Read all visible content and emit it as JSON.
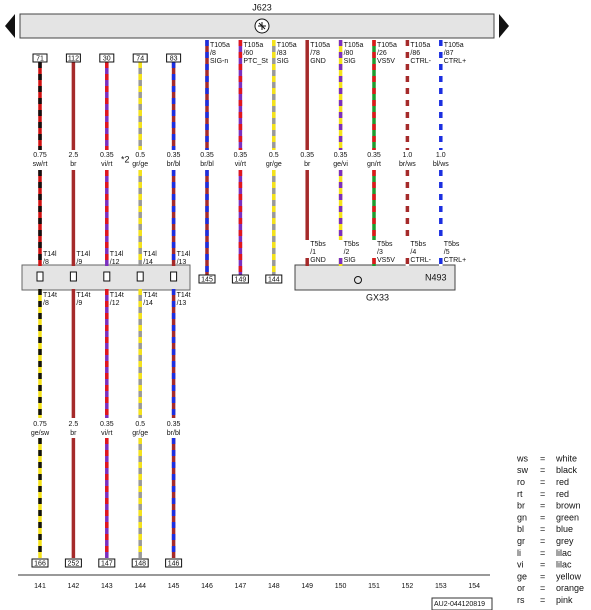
{
  "header": {
    "component": "J623"
  },
  "left_wires": [
    {
      "pin": "71",
      "size": "0.75",
      "color_code": "sw/rt",
      "colors": [
        "#d01010",
        "#111111"
      ],
      "connector": "T14l",
      "connector_pin": "/8",
      "lower_connector": "T14t",
      "lower_pin": "/8",
      "lower_size": "0.75",
      "lower_color_code": "ge/sw",
      "lower_colors": [
        "#f5e31a",
        "#111111"
      ],
      "end": "166"
    },
    {
      "pin": "112",
      "size": "2.5",
      "color_code": "br",
      "colors": [
        "#a52a2a"
      ],
      "connector": "T14l",
      "connector_pin": "/9",
      "lower_connector": "T14t",
      "lower_pin": "/9",
      "lower_size": "2.5",
      "lower_color_code": "br",
      "lower_colors": [
        "#a52a2a"
      ],
      "end": "252"
    },
    {
      "pin": "30",
      "size": "0.35",
      "color_code": "vi/rt",
      "colors": [
        "#7b2fbe",
        "#e0161b"
      ],
      "connector": "T14l",
      "connector_pin": "/12",
      "lower_connector": "T14t",
      "lower_pin": "/12",
      "lower_size": "0.35",
      "lower_color_code": "vi/rt",
      "lower_colors": [
        "#7b2fbe",
        "#e0161b"
      ],
      "end": "147"
    },
    {
      "pin": "74",
      "size": "0.5",
      "color_code": "gr/ge",
      "colors": [
        "#999999",
        "#f5e31a"
      ],
      "connector": "T14l",
      "connector_pin": "/14",
      "lower_connector": "T14t",
      "lower_pin": "/14",
      "lower_size": "0.5",
      "lower_color_code": "gr/ge",
      "lower_colors": [
        "#999999",
        "#f5e31a"
      ],
      "end": "148"
    },
    {
      "pin": "83",
      "size": "0.35",
      "color_code": "br/bl",
      "colors": [
        "#a52a2a",
        "#1b2fe0"
      ],
      "connector": "T14l",
      "connector_pin": "/13",
      "lower_connector": "T14t",
      "lower_pin": "/13",
      "lower_size": "0.35",
      "lower_color_code": "br/bl",
      "lower_colors": [
        "#a52a2a",
        "#1b2fe0"
      ],
      "end": "146"
    }
  ],
  "note_marker": "*2",
  "right_wires": [
    {
      "connector": "T105a",
      "pin": "/8",
      "signal": "SIG-n",
      "size": "0.35",
      "color_code": "br/bl",
      "colors": [
        "#a52a2a",
        "#1b2fe0"
      ],
      "end": "145"
    },
    {
      "connector": "T105a",
      "pin": "/60",
      "signal": "PTC_St",
      "size": "0.35",
      "color_code": "vi/rt",
      "colors": [
        "#7b2fbe",
        "#e0161b"
      ],
      "end": "149"
    },
    {
      "connector": "T105a",
      "pin": "/83",
      "signal": "SIG",
      "size": "0.5",
      "color_code": "gr/ge",
      "colors": [
        "#999999",
        "#f5e31a"
      ],
      "end": "144"
    },
    {
      "connector": "T105a",
      "pin": "/78",
      "signal": "GND",
      "size": "0.35",
      "color_code": "br",
      "colors": [
        "#a52a2a"
      ],
      "end_connector": "T5bs",
      "end_pin": "/1",
      "end_signal": "GND"
    },
    {
      "connector": "T105a",
      "pin": "/80",
      "signal": "SIG",
      "size": "0.35",
      "color_code": "ge/vi",
      "colors": [
        "#f5e31a",
        "#7b2fbe"
      ],
      "end_connector": "T5bs",
      "end_pin": "/2",
      "end_signal": "SIG"
    },
    {
      "connector": "T105a",
      "pin": "/26",
      "signal": "VS5V",
      "size": "0.35",
      "color_code": "gn/rt",
      "colors": [
        "#1e9c2e",
        "#e0161b"
      ],
      "end_connector": "T5bs",
      "end_pin": "/3",
      "end_signal": "VS5V"
    },
    {
      "connector": "T105a",
      "pin": "/86",
      "signal": "CTRL-",
      "size": "1.0",
      "color_code": "br/ws",
      "colors": [
        "#ffffff",
        "#a52a2a"
      ],
      "end_connector": "T5bs",
      "end_pin": "/4",
      "end_signal": "CTRL-"
    },
    {
      "connector": "T105a",
      "pin": "/87",
      "signal": "CTRL+",
      "size": "1.0",
      "color_code": "bl/ws",
      "colors": [
        "#ffffff",
        "#1b2fe0"
      ],
      "end_connector": "T5bs",
      "end_pin": "/5",
      "end_signal": "CTRL+"
    }
  ],
  "component": {
    "label": "N493",
    "designation": "GX33"
  },
  "columns": [
    "141",
    "142",
    "143",
    "144",
    "145",
    "146",
    "147",
    "148",
    "149",
    "150",
    "151",
    "152",
    "153",
    "154"
  ],
  "drawing_number": "AU2-044120819",
  "legend": {
    "separator": "=",
    "entries": [
      {
        "code": "ws",
        "meaning": "white"
      },
      {
        "code": "sw",
        "meaning": "black"
      },
      {
        "code": "ro",
        "meaning": "red"
      },
      {
        "code": "rt",
        "meaning": "red"
      },
      {
        "code": "br",
        "meaning": "brown"
      },
      {
        "code": "gn",
        "meaning": "green"
      },
      {
        "code": "bl",
        "meaning": "blue"
      },
      {
        "code": "gr",
        "meaning": "grey"
      },
      {
        "code": "li",
        "meaning": "lilac"
      },
      {
        "code": "vi",
        "meaning": "lilac"
      },
      {
        "code": "ge",
        "meaning": "yellow"
      },
      {
        "code": "or",
        "meaning": "orange"
      },
      {
        "code": "rs",
        "meaning": "pink"
      }
    ]
  }
}
